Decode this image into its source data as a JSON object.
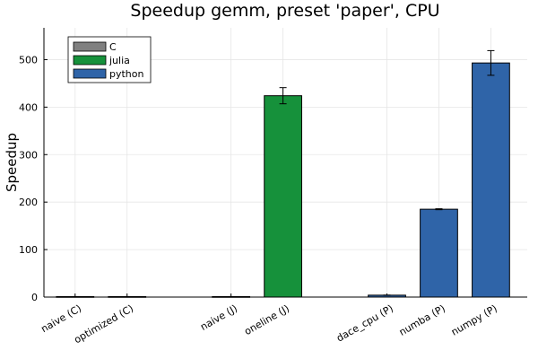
{
  "chart_data": {
    "type": "bar",
    "title": "Speedup gemm, preset 'paper', CPU",
    "xlabel": "",
    "ylabel": "Speedup",
    "ylim": [
      0,
      567
    ],
    "yticks": [
      0,
      100,
      200,
      300,
      400,
      500
    ],
    "grid": true,
    "legend_position": "top-left",
    "categories": [
      "naive (C)",
      "optimized (C)",
      "",
      "naive (J)",
      "oneline (J)",
      "",
      "dace_cpu (P)",
      "numba (P)",
      "numpy (P)"
    ],
    "series": [
      {
        "name": "C",
        "color": "#808080",
        "values": [
          1,
          1,
          null,
          null,
          null,
          null,
          null,
          null,
          null
        ],
        "errors": [
          0,
          0,
          null,
          null,
          null,
          null,
          null,
          null,
          null
        ]
      },
      {
        "name": "julia",
        "color": "#16913b",
        "values": [
          null,
          null,
          null,
          1,
          424,
          null,
          null,
          null,
          null
        ],
        "errors": [
          null,
          null,
          null,
          0,
          17,
          null,
          null,
          null,
          null
        ]
      },
      {
        "name": "python",
        "color": "#2f64a8",
        "values": [
          null,
          null,
          null,
          null,
          null,
          null,
          4,
          185,
          493
        ],
        "errors": [
          null,
          null,
          null,
          null,
          null,
          null,
          0,
          1,
          26
        ]
      }
    ]
  }
}
